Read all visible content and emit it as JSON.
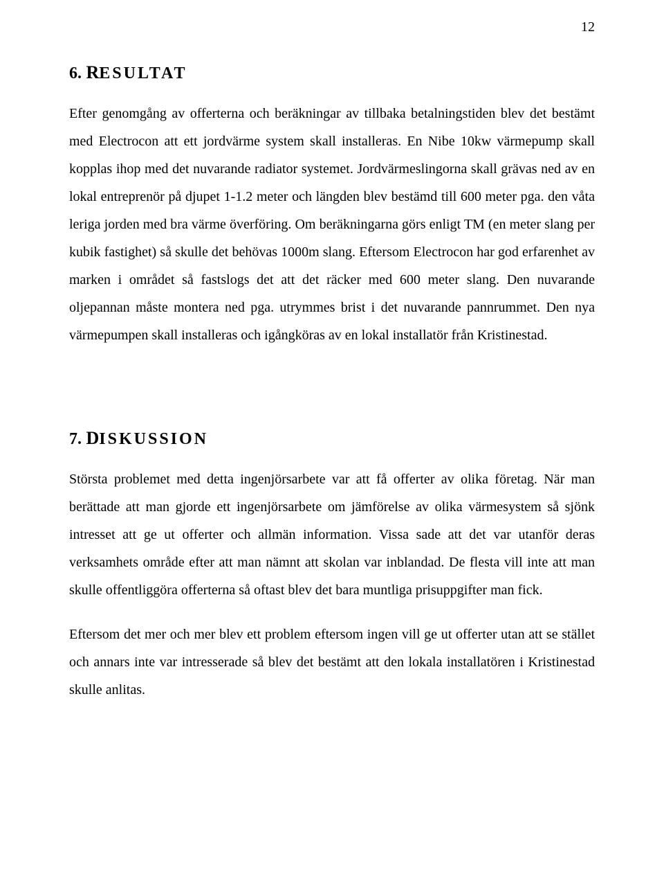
{
  "page_number": "12",
  "sections": [
    {
      "number": "6.",
      "title_first": "R",
      "title_rest": "ESULTAT",
      "paragraphs": [
        "Efter genomgång av offerterna och beräkningar av tillbaka betalningstiden blev det bestämt med Electrocon att ett jordvärme system skall installeras. En Nibe 10kw värmepump skall kopplas ihop med det nuvarande radiator systemet. Jordvärmeslingorna skall grävas ned av en lokal entreprenör på djupet 1-1.2 meter och längden blev bestämd till 600 meter pga. den våta leriga jorden med bra värme överföring. Om beräkningarna görs enligt TM (en meter slang per kubik fastighet) så skulle det behövas 1000m slang. Eftersom Electrocon har god erfarenhet av marken i området så fastslogs det att det räcker med 600 meter slang. Den nuvarande oljepannan måste montera ned pga. utrymmes brist i det nuvarande pannrummet. Den nya värmepumpen skall installeras och igångköras av en lokal installatör från Kristinestad."
      ]
    },
    {
      "number": "7.",
      "title_first": "D",
      "title_rest": "ISKUSSION",
      "paragraphs": [
        "Största problemet med detta ingenjörsarbete var att få offerter av olika företag. När man berättade att man gjorde ett ingenjörsarbete om jämförelse av olika värmesystem så sjönk intresset att ge ut offerter och allmän information. Vissa sade att det var utanför deras verksamhets område efter att man nämnt att skolan var inblandad. De flesta vill inte att man skulle offentliggöra offerterna så oftast blev det bara muntliga prisuppgifter man fick.",
        "Eftersom det mer och mer blev ett problem eftersom ingen vill ge ut offerter utan att se stället och annars inte var intresserade så blev det bestämt att den lokala installatören i Kristinestad skulle anlitas."
      ]
    }
  ]
}
